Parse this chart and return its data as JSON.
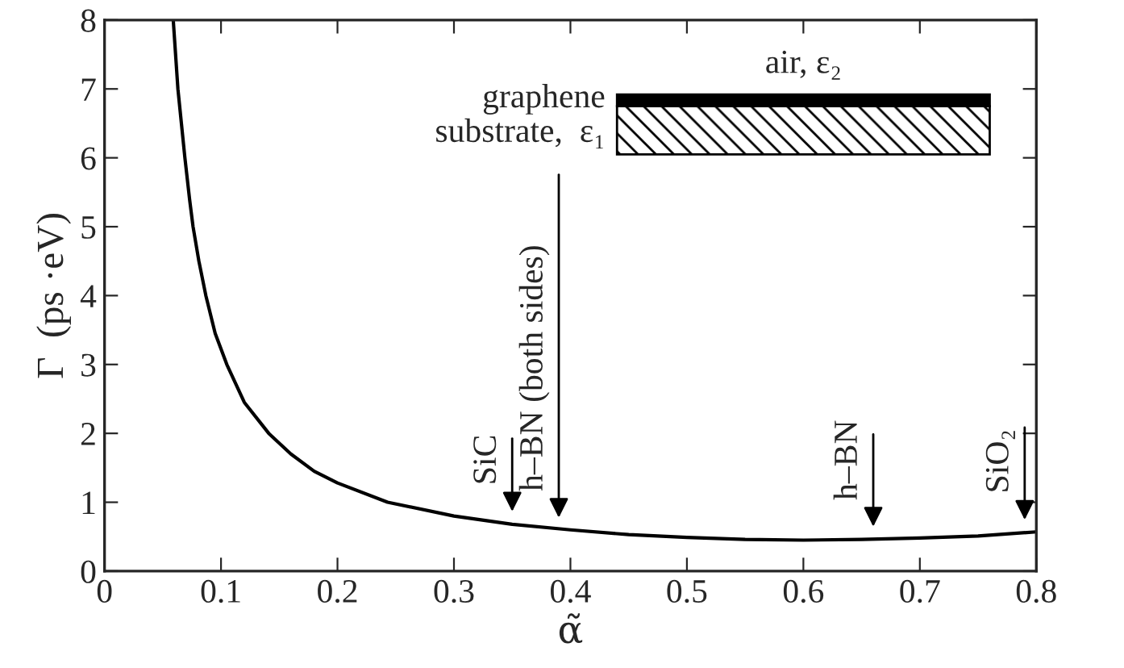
{
  "chart_data": {
    "type": "line",
    "xlabel": "α̃",
    "ylabel": "Γ  (ps ·eV)",
    "x": [
      0.059,
      0.063,
      0.066,
      0.069,
      0.073,
      0.076,
      0.081,
      0.087,
      0.095,
      0.105,
      0.12,
      0.141,
      0.16,
      0.18,
      0.2,
      0.243,
      0.3,
      0.35,
      0.4,
      0.45,
      0.5,
      0.55,
      0.6,
      0.65,
      0.7,
      0.75,
      0.8
    ],
    "series": [
      {
        "color": "#000000",
        "values": [
          8,
          7,
          6.5,
          6,
          5.4,
          5,
          4.5,
          4,
          3.45,
          3,
          2.45,
          2,
          1.7,
          1.45,
          1.28,
          1.0,
          0.8,
          0.68,
          0.6,
          0.53,
          0.49,
          0.46,
          0.45,
          0.46,
          0.48,
          0.51,
          0.57
        ]
      }
    ],
    "xlim": [
      0,
      0.8
    ],
    "xticks": [
      0,
      0.1,
      0.2,
      0.3,
      0.4,
      0.5,
      0.6,
      0.7,
      0.8
    ],
    "ylim": [
      0,
      8
    ],
    "yticks": [
      0,
      1,
      2,
      3,
      4,
      5,
      6,
      7,
      8
    ],
    "grid": false,
    "legend": false,
    "marker": "none",
    "line_style": "solid",
    "annotations": [
      {
        "text": "SiC",
        "x": 0.35,
        "y": 0.68
      },
      {
        "text": "h–BN (both sides)",
        "x": 0.39,
        "y": 0.59
      },
      {
        "text": "h–BN",
        "x": 0.66,
        "y": 0.46
      },
      {
        "text": "SiO₂",
        "x": 0.79,
        "y": 0.56
      },
      "graphene",
      "substrate,  ε₁",
      "air, ε₂"
    ]
  }
}
